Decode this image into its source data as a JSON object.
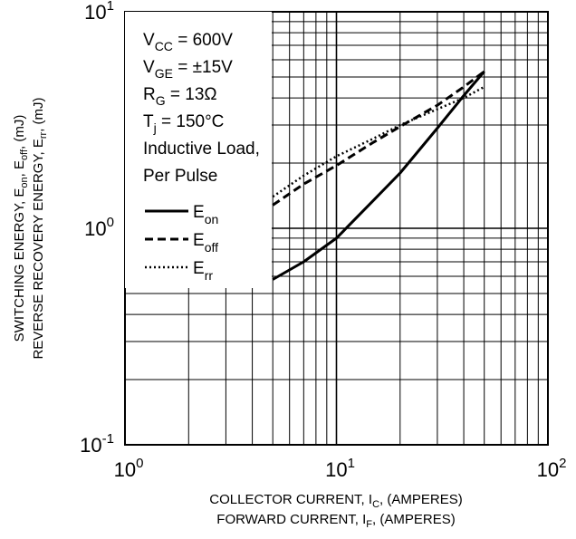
{
  "chart_data": {
    "type": "line",
    "x_scale": "log",
    "y_scale": "log",
    "xlim": [
      1,
      100
    ],
    "ylim": [
      0.1,
      10
    ],
    "grid": true,
    "x_ticks": [
      {
        "value": 1,
        "base": "10",
        "exp": "0"
      },
      {
        "value": 10,
        "base": "10",
        "exp": "1"
      },
      {
        "value": 100,
        "base": "10",
        "exp": "2"
      }
    ],
    "y_ticks": [
      {
        "value": 0.1,
        "base": "10",
        "exp": "-1"
      },
      {
        "value": 1,
        "base": "10",
        "exp": "0"
      },
      {
        "value": 10,
        "base": "10",
        "exp": "1"
      }
    ],
    "xlabel": {
      "line1": {
        "pre": "COLLECTOR CURRENT, I",
        "sub": "C",
        "post": ", (AMPERES)"
      },
      "line2": {
        "pre": "FORWARD CURRENT, I",
        "sub": "F",
        "post": ", (AMPERES)"
      }
    },
    "ylabel": {
      "line1": {
        "pre": "SWITCHING ENERGY, E",
        "sub1": "on",
        "mid": ", E",
        "sub2": "off",
        "post": ", (mJ)"
      },
      "line2": {
        "pre": "REVERSE RECOVERY ENERGY, E",
        "sub": "rr",
        "post": ", (mJ)"
      }
    },
    "conditions": [
      {
        "pre": "V",
        "sub": "CC",
        "post": " = 600V"
      },
      {
        "pre": "V",
        "sub": "GE",
        "post": " = ±15V"
      },
      {
        "pre": "R",
        "sub": "G",
        "post": " = 13Ω"
      },
      {
        "pre": "T",
        "sub": "j",
        "post": " = 150°C"
      },
      {
        "pre": "Inductive Load,",
        "sub": "",
        "post": ""
      },
      {
        "pre": "Per Pulse",
        "sub": "",
        "post": ""
      }
    ],
    "legend_position": "upper-left",
    "series": [
      {
        "name": "E",
        "name_sub": "on",
        "dash": "solid",
        "x": [
          5,
          7,
          10,
          15,
          20,
          30,
          40,
          50
        ],
        "y": [
          0.58,
          0.7,
          0.9,
          1.35,
          1.8,
          2.9,
          4.1,
          5.3
        ]
      },
      {
        "name": "E",
        "name_sub": "off",
        "dash": "dashed",
        "x": [
          5,
          7,
          10,
          15,
          20,
          30,
          40,
          50
        ],
        "y": [
          1.28,
          1.6,
          1.95,
          2.5,
          2.95,
          3.7,
          4.5,
          5.3
        ]
      },
      {
        "name": "E",
        "name_sub": "rr",
        "dash": "dotted",
        "x": [
          5,
          7,
          10,
          15,
          20,
          30,
          40,
          50
        ],
        "y": [
          1.4,
          1.75,
          2.15,
          2.6,
          3.0,
          3.55,
          4.0,
          4.5
        ]
      }
    ]
  }
}
